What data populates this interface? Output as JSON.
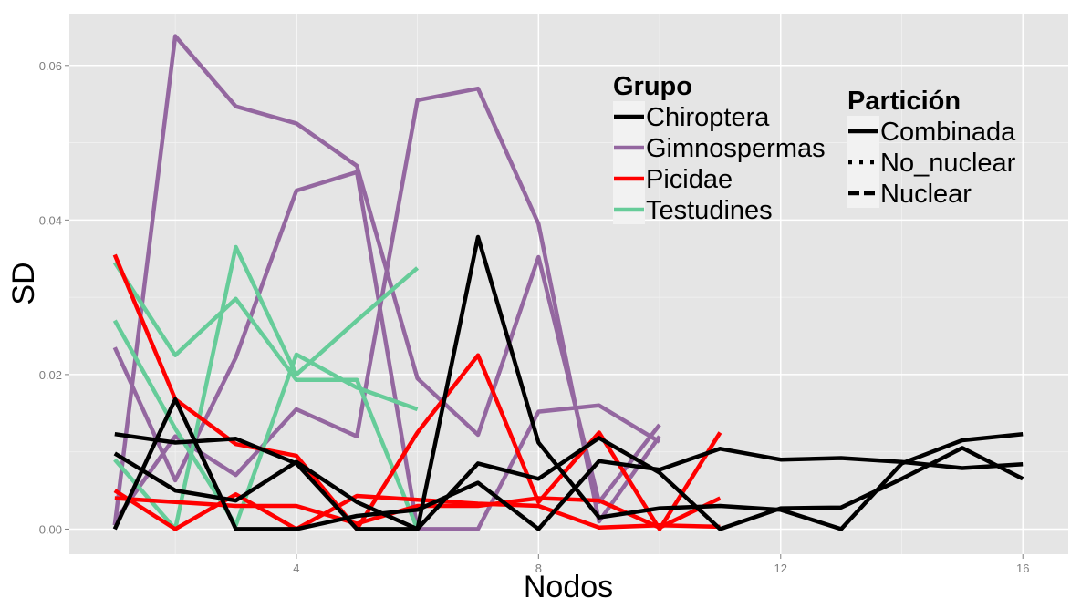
{
  "chart_data": {
    "type": "line",
    "xlabel": "Nodos",
    "ylabel": "SD",
    "xlim": [
      0.25,
      16.75
    ],
    "ylim": [
      -0.00325,
      0.0667
    ],
    "x_ticks": [
      4,
      8,
      12,
      16
    ],
    "y_ticks": [
      0.0,
      0.02,
      0.04,
      0.06
    ],
    "x_tick_labels": [
      "4",
      "8",
      "12",
      "16"
    ],
    "y_tick_labels": [
      "0.00",
      "0.02",
      "0.04",
      "0.06"
    ],
    "grid": true,
    "legend_placement": "inside top-right",
    "legends": {
      "grupo": {
        "title": "Grupo",
        "entries": [
          {
            "label": "Chiroptera",
            "color": "#000000"
          },
          {
            "label": "Gimnospermas",
            "color": "#9467a0"
          },
          {
            "label": "Picidae",
            "color": "#ff0000"
          },
          {
            "label": "Testudines",
            "color": "#66cc99"
          }
        ]
      },
      "particion": {
        "title": "Partición",
        "entries": [
          {
            "label": "Combinada",
            "linestyle": "solid"
          },
          {
            "label": "No_nuclear",
            "linestyle": "dotted"
          },
          {
            "label": "Nuclear",
            "linestyle": "dashed"
          }
        ]
      }
    },
    "series": [
      {
        "grupo": "Gimnospermas",
        "particion": "No_nuclear",
        "x": [
          1,
          2,
          3,
          4,
          5,
          6,
          7,
          8,
          9,
          10
        ],
        "y": [
          0.001,
          0.012,
          0.007,
          0.0155,
          0.012,
          0.0555,
          0.057,
          0.0395,
          0.001,
          0.012
        ]
      },
      {
        "grupo": "Gimnospermas",
        "particion": "Nuclear",
        "x": [
          1,
          2,
          3,
          4,
          5,
          6,
          7,
          8,
          9,
          10
        ],
        "y": [
          0.0005,
          0.0638,
          0.0547,
          0.0525,
          0.047,
          0.0195,
          0.0122,
          0.0352,
          0.0035,
          0.0135
        ]
      },
      {
        "grupo": "Gimnospermas",
        "particion": "Combinada",
        "x": [
          1,
          2,
          3,
          4,
          5,
          6,
          7,
          8,
          9,
          10
        ],
        "y": [
          0.0235,
          0.0063,
          0.0222,
          0.0438,
          0.0462,
          0.0,
          0.0,
          0.0152,
          0.016,
          0.0113
        ]
      },
      {
        "grupo": "Testudines",
        "particion": "No_nuclear",
        "x": [
          1,
          2,
          3,
          4,
          5,
          6
        ],
        "y": [
          0.0345,
          0.0225,
          0.0298,
          0.0193,
          0.0193,
          0.0
        ]
      },
      {
        "grupo": "Testudines",
        "particion": "Nuclear",
        "x": [
          1,
          2,
          3,
          4,
          5,
          6
        ],
        "y": [
          0.009,
          0.0,
          0.0365,
          0.02,
          0.027,
          0.0338
        ]
      },
      {
        "grupo": "Testudines",
        "particion": "Combinada",
        "x": [
          1,
          2,
          3,
          4,
          5,
          6
        ],
        "y": [
          0.027,
          0.013,
          0.0005,
          0.0226,
          0.0183,
          0.0155
        ]
      },
      {
        "grupo": "Picidae",
        "particion": "No_nuclear",
        "x": [
          1,
          2,
          3,
          4,
          5,
          6,
          7,
          8,
          9,
          10,
          11
        ],
        "y": [
          0.0355,
          0.0168,
          0.011,
          0.0095,
          0.0,
          0.0125,
          0.0225,
          0.0035,
          0.0125,
          0.0,
          0.0125
        ]
      },
      {
        "grupo": "Picidae",
        "particion": "Nuclear",
        "x": [
          1,
          2,
          3,
          4,
          5,
          6,
          7,
          8,
          9,
          10,
          11
        ],
        "y": [
          0.005,
          0.0,
          0.0045,
          0.0,
          0.0043,
          0.0038,
          0.0033,
          0.003,
          0.0002,
          0.0005,
          0.0003
        ]
      },
      {
        "grupo": "Picidae",
        "particion": "Combinada",
        "x": [
          1,
          2,
          3,
          4,
          5,
          6,
          7,
          8,
          9,
          10,
          11
        ],
        "y": [
          0.004,
          0.0035,
          0.003,
          0.003,
          0.0007,
          0.003,
          0.003,
          0.004,
          0.0037,
          0.0002,
          0.004
        ]
      },
      {
        "grupo": "Chiroptera",
        "particion": "No_nuclear",
        "x": [
          1,
          2,
          3,
          4,
          5,
          6,
          7,
          8,
          9,
          10,
          11,
          12,
          13,
          14,
          15,
          16
        ],
        "y": [
          0.0123,
          0.0112,
          0.0117,
          0.0085,
          0.0,
          0.0,
          0.0378,
          0.0112,
          0.0015,
          0.0027,
          0.003,
          0.0025,
          0.0,
          0.0085,
          0.0115,
          0.0123
        ]
      },
      {
        "grupo": "Chiroptera",
        "particion": "Nuclear",
        "x": [
          1,
          2,
          3,
          4,
          5,
          6,
          7,
          8,
          9,
          10,
          11,
          12,
          13,
          14,
          15,
          16
        ],
        "y": [
          0.0098,
          0.005,
          0.0037,
          0.0087,
          0.0035,
          0.0,
          0.0085,
          0.0065,
          0.0118,
          0.0073,
          0.0,
          0.0027,
          0.0028,
          0.0065,
          0.0105,
          0.0065
        ]
      },
      {
        "grupo": "Chiroptera",
        "particion": "Combinada",
        "x": [
          1,
          2,
          3,
          4,
          5,
          6,
          7,
          8,
          9,
          10,
          11,
          12,
          13,
          14,
          15,
          16
        ],
        "y": [
          0.0,
          0.0168,
          0.0,
          0.0,
          0.0017,
          0.0025,
          0.006,
          0.0,
          0.0088,
          0.0077,
          0.0104,
          0.009,
          0.0092,
          0.0087,
          0.0079,
          0.0084
        ]
      }
    ]
  },
  "styles": {
    "panel_bg": "#e5e5e5",
    "grid_major": "#ffffff",
    "grid_minor": "#f2f2f2",
    "group_colors": {
      "Chiroptera": "#000000",
      "Gimnospermas": "#9467a0",
      "Picidae": "#ff0000",
      "Testudines": "#66cc99"
    }
  }
}
